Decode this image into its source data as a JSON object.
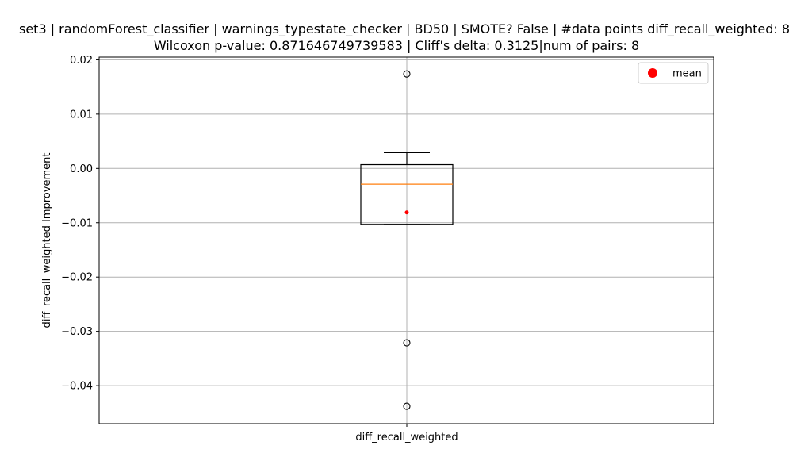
{
  "chart_data": {
    "type": "box",
    "title_line1": "set3 | randomForest_classifier | warnings_typestate_checker | BD50 | SMOTE? False | #data points diff_recall_weighted: 8",
    "title_line2": "Wilcoxon p-value: 0.871646749739583 | Cliff's delta: 0.3125|num of pairs: 8",
    "xlabel": "",
    "ylabel": "diff_recall_weighted Improvement",
    "categories": [
      "diff_recall_weighted"
    ],
    "box": {
      "whisker_low": -0.0103,
      "q1": -0.0103,
      "median": -0.0029,
      "q3": 0.0007,
      "whisker_high": 0.0029,
      "mean": -0.0081,
      "outliers": [
        0.0174,
        -0.0321,
        -0.0438
      ]
    },
    "ylim": [
      -0.047,
      0.0205
    ],
    "yticks": [
      0.02,
      0.01,
      0.0,
      -0.01,
      -0.02,
      -0.03,
      -0.04
    ],
    "ytick_labels": [
      "0.02",
      "0.01",
      "0.00",
      "−0.01",
      "−0.02",
      "−0.03",
      "−0.04"
    ],
    "grid": true,
    "legend": {
      "position": "top-right",
      "entries": [
        {
          "label": "mean",
          "color": "#ff0000"
        }
      ]
    },
    "colors": {
      "median": "#ff7f0e",
      "mean": "#ff0000",
      "box": "#000000",
      "grid": "#b0b0b0"
    }
  }
}
